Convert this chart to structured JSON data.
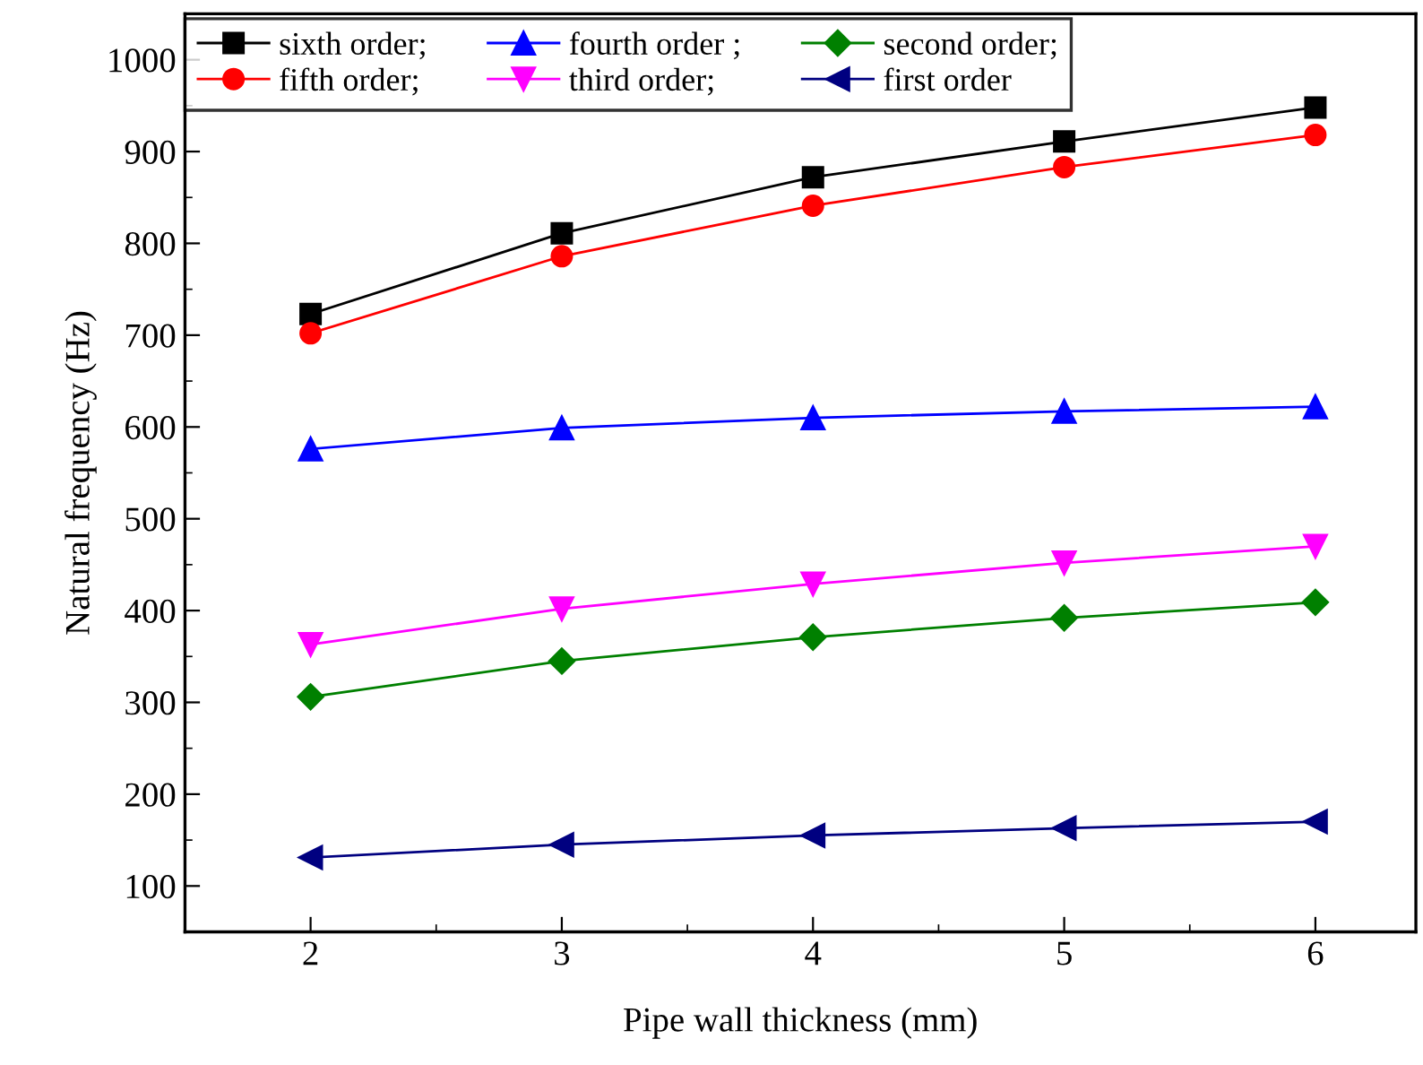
{
  "chart_data": {
    "type": "line",
    "xlabel": "Pipe wall thickness (mm)",
    "ylabel": "Natural frequency (Hz)",
    "x": [
      2,
      3,
      4,
      5,
      6
    ],
    "series": [
      {
        "name": "sixth order;",
        "color": "#000000",
        "marker": "square",
        "values": [
          723,
          811,
          872,
          911,
          948
        ]
      },
      {
        "name": "fifth order;",
        "color": "#ff0000",
        "marker": "circle",
        "values": [
          702,
          786,
          841,
          883,
          918
        ]
      },
      {
        "name": "fourth order ;",
        "color": "#0000ff",
        "marker": "triangle",
        "values": [
          576,
          599,
          610,
          617,
          622
        ]
      },
      {
        "name": "third order;",
        "color": "#ff00ff",
        "marker": "triangle_down",
        "values": [
          363,
          402,
          429,
          452,
          470
        ]
      },
      {
        "name": "second order;",
        "color": "#008000",
        "marker": "diamond",
        "values": [
          306,
          345,
          371,
          392,
          409
        ]
      },
      {
        "name": "first order",
        "color": "#000080",
        "marker": "triangle_left",
        "values": [
          131,
          145,
          155,
          163,
          170
        ]
      }
    ],
    "xlim": [
      1.5,
      6.4
    ],
    "xticks": [
      2,
      3,
      4,
      5,
      6
    ],
    "ylim": [
      50,
      1050
    ],
    "yticks": [
      100,
      200,
      300,
      400,
      500,
      600,
      700,
      800,
      900,
      1000
    ],
    "grid": false,
    "legend": "top",
    "line_style": "solid"
  }
}
